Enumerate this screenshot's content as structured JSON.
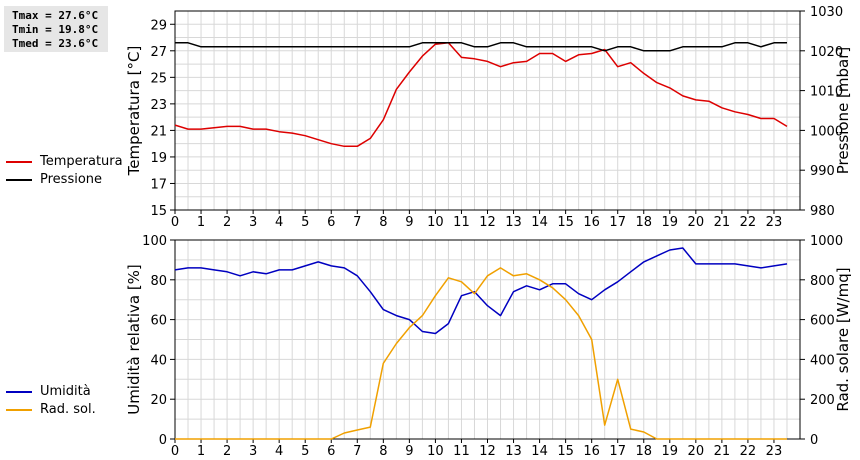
{
  "stats": {
    "tmax": "Tmax = 27.6°C",
    "tmin": "Tmin = 19.8°C",
    "tmed": "Tmed = 23.6°C"
  },
  "chart_data": [
    {
      "type": "line",
      "grid": true,
      "legend_position": "left",
      "xlim": [
        0,
        24
      ],
      "xticks": [
        "0",
        "1",
        "2",
        "3",
        "4",
        "5",
        "6",
        "7",
        "8",
        "9",
        "10",
        "11",
        "12",
        "13",
        "14",
        "15",
        "16",
        "17",
        "18",
        "19",
        "20",
        "21",
        "22",
        "23"
      ],
      "ylabel": "Temperatura [°C]",
      "ylim": [
        15,
        30
      ],
      "yticks": [
        15,
        17,
        19,
        21,
        23,
        25,
        27,
        29
      ],
      "y2label": "Pressione [mbar]",
      "y2lim": [
        980,
        1030
      ],
      "y2ticks": [
        980,
        990,
        1000,
        1010,
        1020,
        1030
      ],
      "series": [
        {
          "name": "Temperatura",
          "color": "#dd0000",
          "axis": "left",
          "x": [
            0,
            0.5,
            1,
            1.5,
            2,
            2.5,
            3,
            3.5,
            4,
            4.5,
            5,
            5.5,
            6,
            6.5,
            7,
            7.5,
            8,
            8.5,
            9,
            9.5,
            10,
            10.5,
            11,
            11.5,
            12,
            12.5,
            13,
            13.5,
            14,
            14.5,
            15,
            15.5,
            16,
            16.5,
            17,
            17.5,
            18,
            18.5,
            19,
            19.5,
            20,
            20.5,
            21,
            21.5,
            22,
            22.5,
            23,
            23.5
          ],
          "y": [
            21.4,
            21.1,
            21.1,
            21.2,
            21.3,
            21.3,
            21.1,
            21.1,
            20.9,
            20.8,
            20.6,
            20.3,
            20.0,
            19.8,
            19.8,
            20.4,
            21.8,
            24.1,
            25.4,
            26.6,
            27.5,
            27.6,
            26.5,
            26.4,
            26.2,
            25.8,
            26.1,
            26.2,
            26.8,
            26.8,
            26.2,
            26.7,
            26.8,
            27.1,
            25.8,
            26.1,
            25.3,
            24.6,
            24.2,
            23.6,
            23.3,
            23.2,
            22.7,
            22.4,
            22.2,
            21.9,
            21.9,
            21.3
          ]
        },
        {
          "name": "Pressione",
          "color": "#000000",
          "axis": "right",
          "x": [
            0,
            0.5,
            1,
            1.5,
            2,
            2.5,
            3,
            3.5,
            4,
            4.5,
            5,
            5.5,
            6,
            6.5,
            7,
            7.5,
            8,
            8.5,
            9,
            9.5,
            10,
            10.5,
            11,
            11.5,
            12,
            12.5,
            13,
            13.5,
            14,
            14.5,
            15,
            15.5,
            16,
            16.5,
            17,
            17.5,
            18,
            18.5,
            19,
            19.5,
            20,
            20.5,
            21,
            21.5,
            22,
            22.5,
            23,
            23.5
          ],
          "y": [
            1022,
            1022,
            1021,
            1021,
            1021,
            1021,
            1021,
            1021,
            1021,
            1021,
            1021,
            1021,
            1021,
            1021,
            1021,
            1021,
            1021,
            1021,
            1021,
            1022,
            1022,
            1022,
            1022,
            1021,
            1021,
            1022,
            1022,
            1021,
            1021,
            1021,
            1021,
            1021,
            1021,
            1020,
            1021,
            1021,
            1020,
            1020,
            1020,
            1021,
            1021,
            1021,
            1021,
            1022,
            1022,
            1021,
            1022,
            1022
          ]
        }
      ]
    },
    {
      "type": "line",
      "grid": true,
      "legend_position": "left",
      "xlim": [
        0,
        24
      ],
      "xticks": [
        "0",
        "1",
        "2",
        "3",
        "4",
        "5",
        "6",
        "7",
        "8",
        "9",
        "10",
        "11",
        "12",
        "13",
        "14",
        "15",
        "16",
        "17",
        "18",
        "19",
        "20",
        "21",
        "22",
        "23"
      ],
      "ylabel": "Umidità relativa [%]",
      "ylim": [
        0,
        100
      ],
      "yticks": [
        0,
        20,
        40,
        60,
        80,
        100
      ],
      "y2label": "Rad. solare [W/mq]",
      "y2lim": [
        0,
        1000
      ],
      "y2ticks": [
        0,
        200,
        400,
        600,
        800,
        1000
      ],
      "series": [
        {
          "name": "Umidità",
          "color": "#0000c0",
          "axis": "left",
          "x": [
            0,
            0.5,
            1,
            1.5,
            2,
            2.5,
            3,
            3.5,
            4,
            4.5,
            5,
            5.5,
            6,
            6.5,
            7,
            7.5,
            8,
            8.5,
            9,
            9.5,
            10,
            10.5,
            11,
            11.5,
            12,
            12.5,
            13,
            13.5,
            14,
            14.5,
            15,
            15.5,
            16,
            16.5,
            17,
            17.5,
            18,
            18.5,
            19,
            19.5,
            20,
            20.5,
            21,
            21.5,
            22,
            22.5,
            23,
            23.5
          ],
          "y": [
            85,
            86,
            86,
            85,
            84,
            82,
            84,
            83,
            85,
            85,
            87,
            89,
            87,
            86,
            82,
            74,
            65,
            62,
            60,
            54,
            53,
            58,
            72,
            74,
            67,
            62,
            74,
            77,
            75,
            78,
            78,
            73,
            70,
            75,
            79,
            84,
            89,
            92,
            95,
            96,
            88,
            88,
            88,
            88,
            87,
            86,
            87,
            88
          ]
        },
        {
          "name": "Rad. sol.",
          "color": "#f0a000",
          "axis": "right",
          "x": [
            0,
            0.5,
            1,
            1.5,
            2,
            2.5,
            3,
            3.5,
            4,
            4.5,
            5,
            5.5,
            6,
            6.5,
            7,
            7.5,
            8,
            8.5,
            9,
            9.5,
            10,
            10.5,
            11,
            11.5,
            12,
            12.5,
            13,
            13.5,
            14,
            14.5,
            15,
            15.5,
            16,
            16.5,
            17,
            17.5,
            18,
            18.5,
            19,
            19.5,
            20,
            20.5,
            21,
            21.5,
            22,
            22.5,
            23,
            23.5
          ],
          "y": [
            0,
            0,
            0,
            0,
            0,
            0,
            0,
            0,
            0,
            0,
            0,
            0,
            0,
            30,
            45,
            60,
            380,
            480,
            560,
            620,
            720,
            810,
            790,
            730,
            820,
            860,
            820,
            830,
            800,
            760,
            700,
            620,
            500,
            70,
            300,
            50,
            35,
            0,
            0,
            0,
            0,
            0,
            0,
            0,
            0,
            0,
            0,
            0
          ]
        }
      ]
    }
  ]
}
